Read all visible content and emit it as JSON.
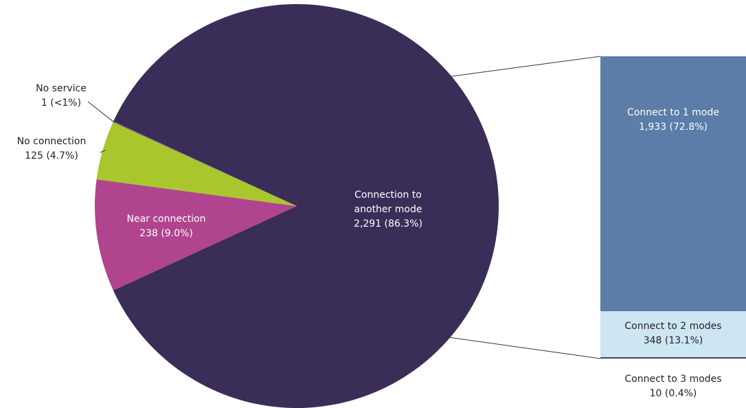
{
  "chart_data": {
    "type": "bar-of-pie",
    "pie": {
      "slices": [
        {
          "label": "Connection to another mode",
          "count": 2291,
          "count_text": "2,291",
          "percent_text": "86.3%",
          "color": "#3a2d58"
        },
        {
          "label": "Near connection",
          "count": 238,
          "count_text": "238",
          "percent_text": "9.0%",
          "color": "#b0448f"
        },
        {
          "label": "No connection",
          "count": 125,
          "count_text": "125",
          "percent_text": "4.7%",
          "color": "#a9c62d"
        },
        {
          "label": "No service",
          "count": 1,
          "count_text": "1",
          "percent_text": "<1%",
          "color": "#6b5f86"
        }
      ]
    },
    "bar": {
      "breakdown_of": "Connection to another mode",
      "segments": [
        {
          "label": "Connect to 1 mode",
          "count": 1933,
          "count_text": "1,933",
          "percent_text": "72.8%",
          "color": "#5b7da8"
        },
        {
          "label": "Connect to 2 modes",
          "count": 348,
          "count_text": "348",
          "percent_text": "13.1%",
          "color": "#cde6f4"
        },
        {
          "label": "Connect to 3 modes",
          "count": 10,
          "count_text": "10",
          "percent_text": "0.4%",
          "color": "#2e3f5c"
        }
      ]
    }
  }
}
